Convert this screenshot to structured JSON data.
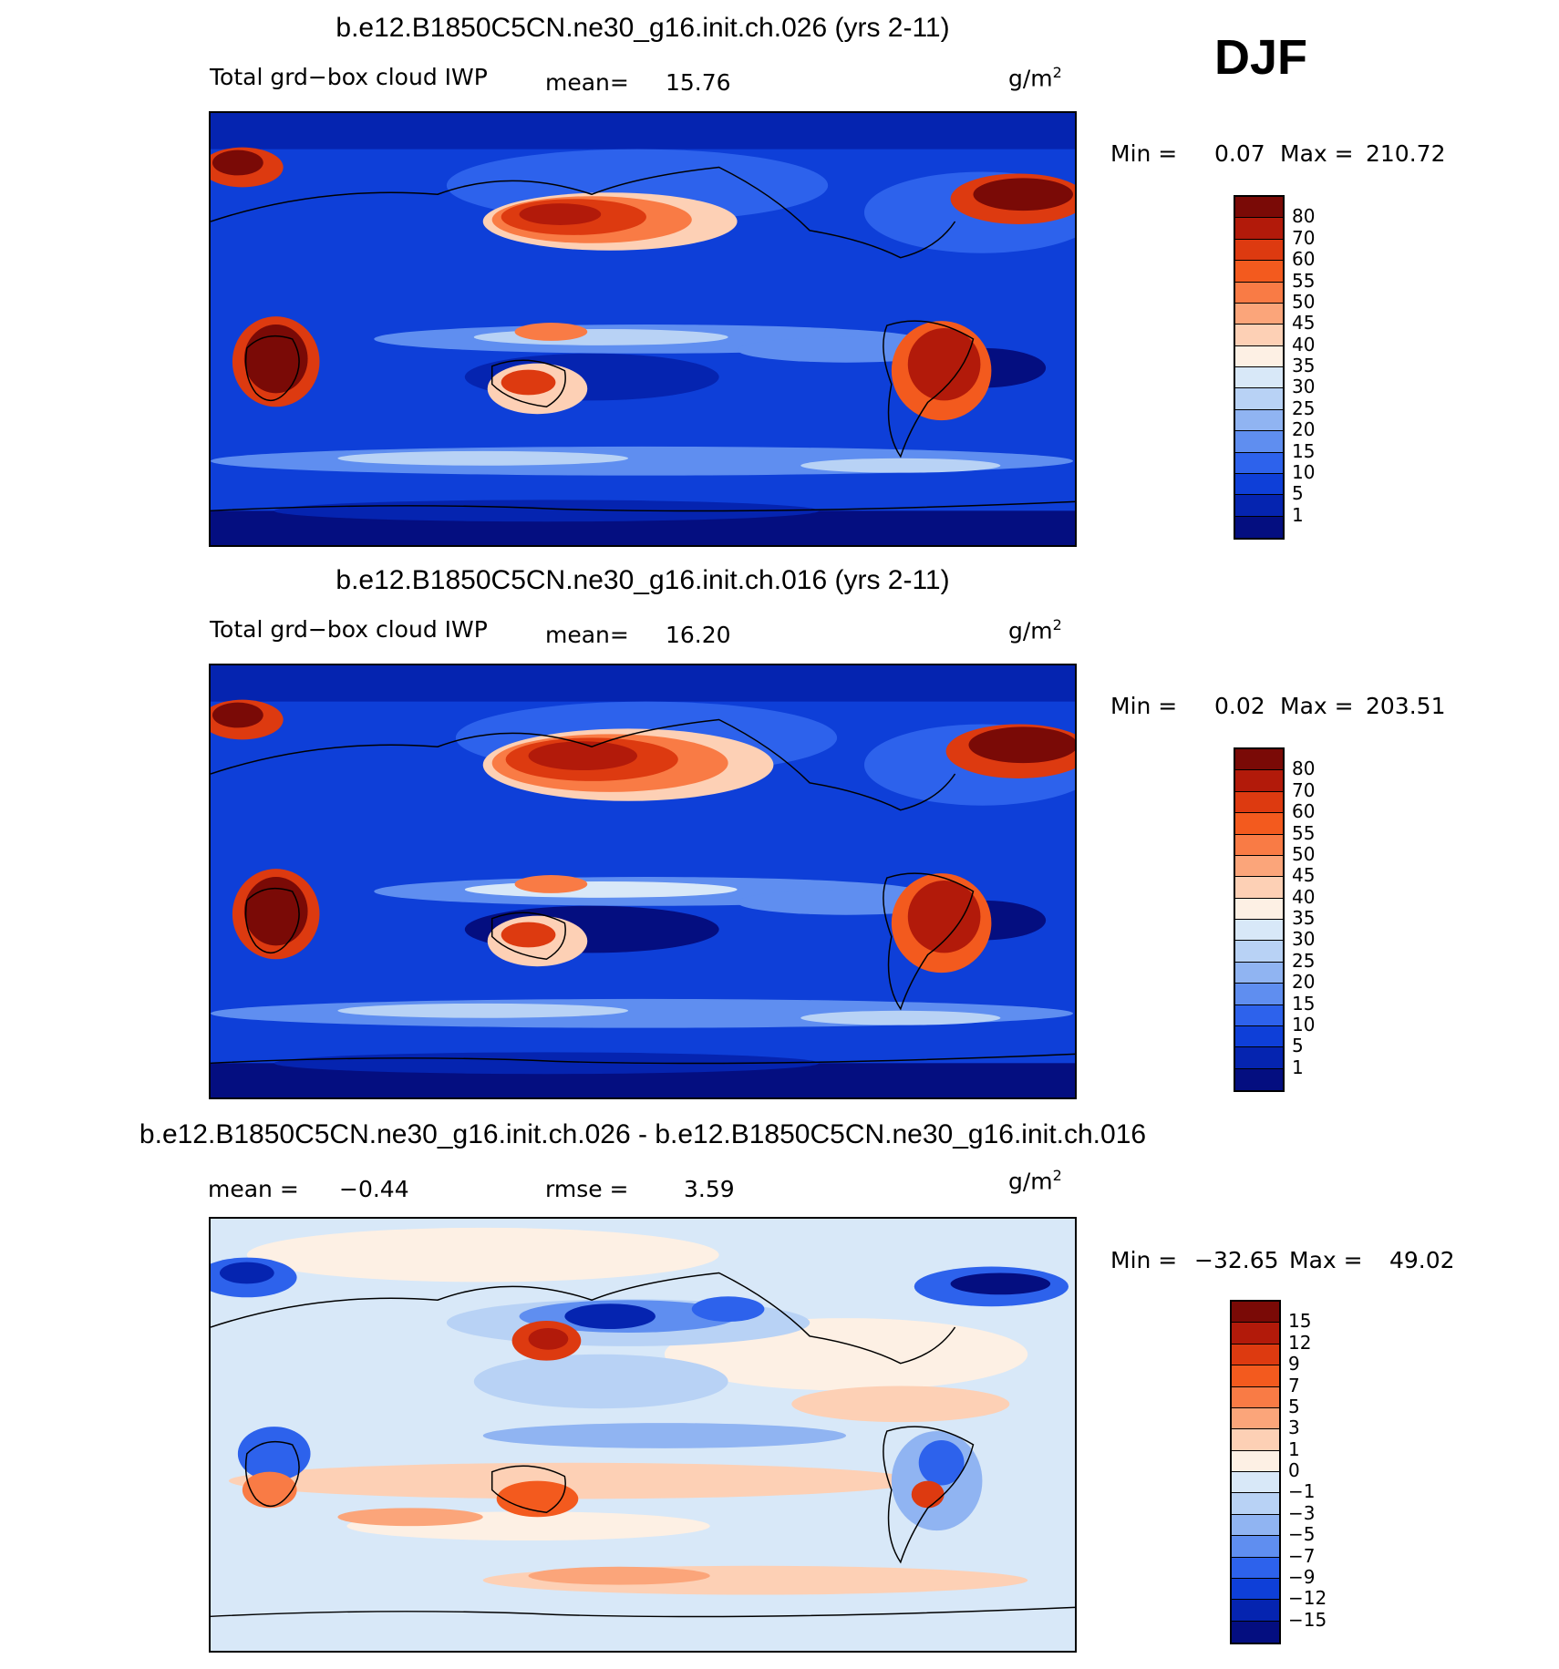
{
  "season": "DJF",
  "panels": [
    {
      "title": "b.e12.B1850C5CN.ne30_g16.init.ch.026 (yrs 2-11)",
      "field_label": "Total grd−box cloud IWP",
      "mean_label": "mean=",
      "mean_value": "15.76",
      "units": "g/m",
      "units_sup": "2",
      "min_label": "Min =",
      "min_value": "0.07",
      "max_label": "Max =",
      "max_value": "210.72",
      "colorbar_labels": [
        "80",
        "70",
        "60",
        "55",
        "50",
        "45",
        "40",
        "35",
        "30",
        "25",
        "20",
        "15",
        "10",
        "5",
        "1"
      ],
      "colorbar_colors": [
        "#7a0a06",
        "#b21a0a",
        "#dd3a10",
        "#f35a1e",
        "#f97b45",
        "#fba57a",
        "#fdd0b5",
        "#fdf0e4",
        "#d8e8f8",
        "#b8d2f5",
        "#90b4f2",
        "#5f8ef0",
        "#2d62ec",
        "#0e3fd8",
        "#0524b0",
        "#040e80"
      ]
    },
    {
      "title": "b.e12.B1850C5CN.ne30_g16.init.ch.016 (yrs 2-11)",
      "field_label": "Total grd−box cloud IWP",
      "mean_label": "mean=",
      "mean_value": "16.20",
      "units": "g/m",
      "units_sup": "2",
      "min_label": "Min =",
      "min_value": "0.02",
      "max_label": "Max =",
      "max_value": "203.51",
      "colorbar_labels": [
        "80",
        "70",
        "60",
        "55",
        "50",
        "45",
        "40",
        "35",
        "30",
        "25",
        "20",
        "15",
        "10",
        "5",
        "1"
      ],
      "colorbar_colors": [
        "#7a0a06",
        "#b21a0a",
        "#dd3a10",
        "#f35a1e",
        "#f97b45",
        "#fba57a",
        "#fdd0b5",
        "#fdf0e4",
        "#d8e8f8",
        "#b8d2f5",
        "#90b4f2",
        "#5f8ef0",
        "#2d62ec",
        "#0e3fd8",
        "#0524b0",
        "#040e80"
      ]
    },
    {
      "title": "b.e12.B1850C5CN.ne30_g16.init.ch.026 - b.e12.B1850C5CN.ne30_g16.init.ch.016",
      "mean_label": "mean =",
      "mean_value": "−0.44",
      "rmse_label": "rmse =",
      "rmse_value": "3.59",
      "units": "g/m",
      "units_sup": "2",
      "min_label": "Min =",
      "min_value": "−32.65",
      "max_label": "Max =",
      "max_value": "49.02",
      "colorbar_labels": [
        "15",
        "12",
        "9",
        "7",
        "5",
        "3",
        "1",
        "0",
        "−1",
        "−3",
        "−5",
        "−7",
        "−9",
        "−12",
        "−15"
      ],
      "colorbar_colors": [
        "#7a0a06",
        "#b21a0a",
        "#dd3a10",
        "#f35a1e",
        "#f97b45",
        "#fba57a",
        "#fdd0b5",
        "#fdf0e4",
        "#d8e8f8",
        "#b8d2f5",
        "#90b4f2",
        "#5f8ef0",
        "#2d62ec",
        "#0e3fd8",
        "#0524b0",
        "#040e80"
      ]
    }
  ]
}
